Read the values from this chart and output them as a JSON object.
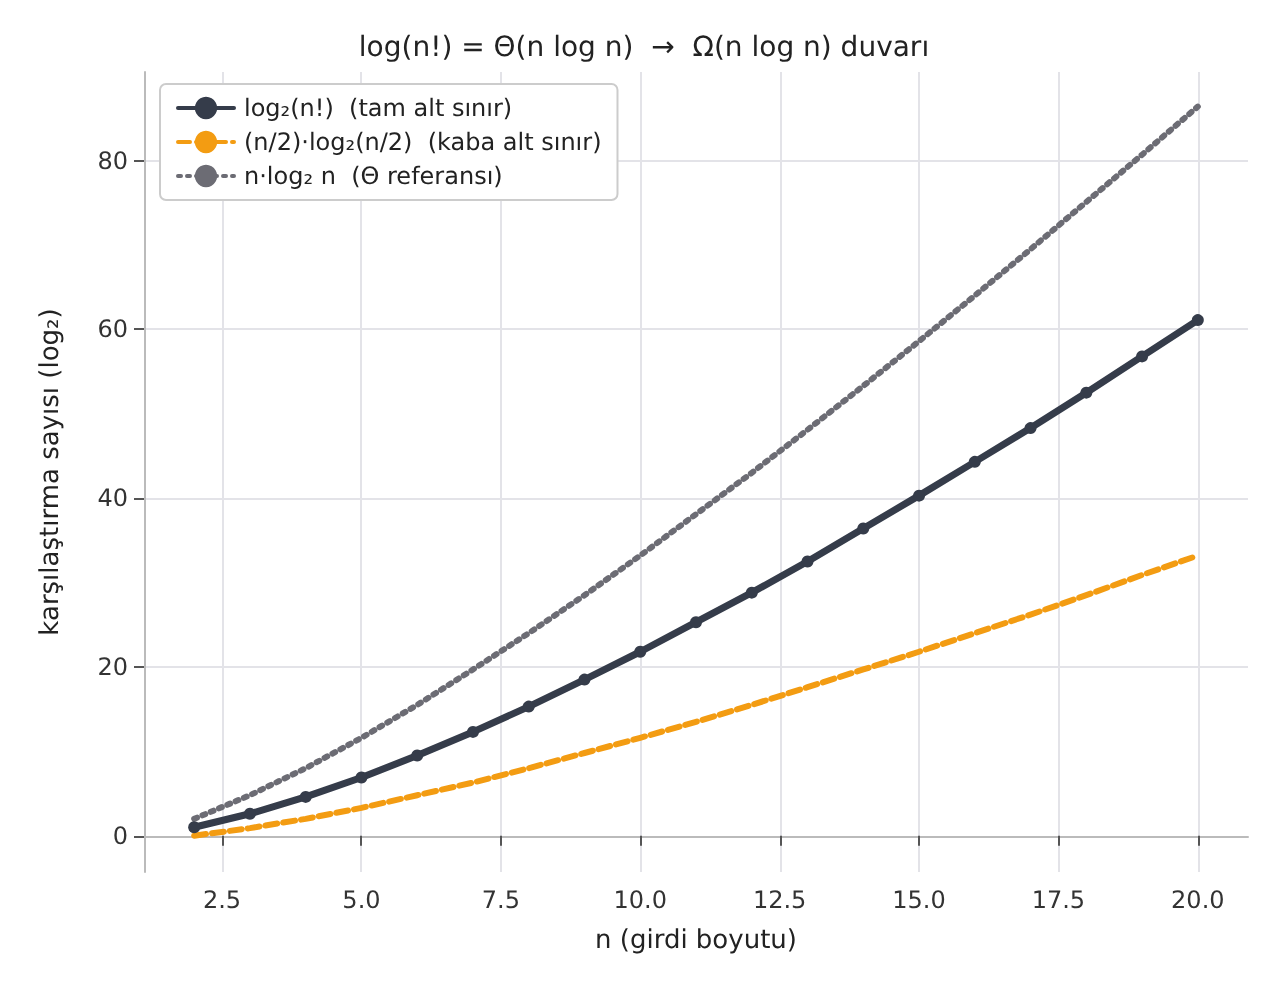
{
  "chart_data": {
    "type": "line",
    "title": "log(n!) = Θ(n log n)  →  Ω(n log n) duvarı",
    "xlabel": "n (girdi boyutu)",
    "ylabel": "karşılaştırma sayısı (log₂)",
    "x": [
      2,
      3,
      4,
      5,
      6,
      7,
      8,
      9,
      10,
      11,
      12,
      13,
      14,
      15,
      16,
      17,
      18,
      19,
      20
    ],
    "series": [
      {
        "name": "log₂(n!)  (tam alt sınır)",
        "color": "#353c4a",
        "marker": "circle",
        "line_style": "solid",
        "values": [
          1,
          2.6,
          4.6,
          6.9,
          9.5,
          12.3,
          15.3,
          18.5,
          21.8,
          25.3,
          28.8,
          32.5,
          36.4,
          40.3,
          44.3,
          48.3,
          52.5,
          56.8,
          61.1
        ]
      },
      {
        "name": "(n/2)·log₂(n/2)  (kaba alt sınır)",
        "color": "#f39c12",
        "marker": "none",
        "line_style": "dashed",
        "values": [
          0,
          0.9,
          2,
          3.3,
          4.8,
          6.3,
          8,
          9.8,
          11.6,
          13.5,
          15.5,
          17.6,
          19.7,
          21.8,
          24,
          26.2,
          28.5,
          30.9,
          33.2
        ]
      },
      {
        "name": "n·log₂ n  (Θ referansı)",
        "color": "#6c6c74",
        "marker": "none",
        "line_style": "dotted",
        "values": [
          2,
          4.8,
          8,
          11.6,
          15.5,
          19.7,
          24,
          28.5,
          33.2,
          38.1,
          43,
          48.1,
          53.3,
          58.6,
          64,
          69.5,
          75.1,
          80.7,
          86.4
        ]
      }
    ],
    "xlim": [
      1.1,
      20.9
    ],
    "xticks": [
      {
        "value": 2.5,
        "label": "2.5"
      },
      {
        "value": 5,
        "label": "5.0"
      },
      {
        "value": 7.5,
        "label": "7.5"
      },
      {
        "value": 10,
        "label": "10.0"
      },
      {
        "value": 12.5,
        "label": "12.5"
      },
      {
        "value": 15,
        "label": "15.0"
      },
      {
        "value": 17.5,
        "label": "17.5"
      },
      {
        "value": 20,
        "label": "20.0"
      }
    ],
    "ylim": [
      -4.3,
      90.5
    ],
    "yticks": [
      0,
      20,
      40,
      60,
      80
    ],
    "grid": true,
    "legend": "top left"
  }
}
